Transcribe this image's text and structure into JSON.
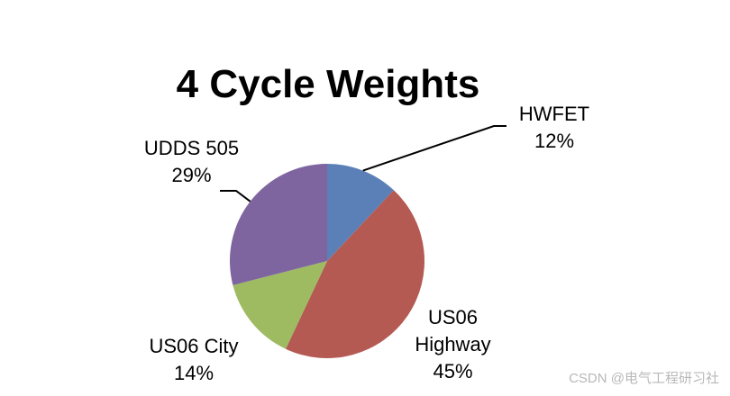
{
  "chart_data": {
    "type": "pie",
    "title": "4 Cycle Weights",
    "slices": [
      {
        "name": "HWFET",
        "value": 12,
        "label": "12%",
        "color": "#5b80b8"
      },
      {
        "name": "US06 Highway",
        "value": 45,
        "label": "45%",
        "color": "#b45a53"
      },
      {
        "name": "US06 City",
        "value": 14,
        "label": "14%",
        "color": "#9ebb62"
      },
      {
        "name": "UDDS 505",
        "value": 29,
        "label": "29%",
        "color": "#7e65a0"
      }
    ]
  },
  "labels": {
    "hwfet_name": "HWFET",
    "hwfet_pct": "12%",
    "us06h_name1": "US06",
    "us06h_name2": "Highway",
    "us06h_pct": "45%",
    "us06c_name": "US06 City",
    "us06c_pct": "14%",
    "udds_name": "UDDS 505",
    "udds_pct": "29%"
  },
  "watermark": "CSDN @电气工程研习社"
}
